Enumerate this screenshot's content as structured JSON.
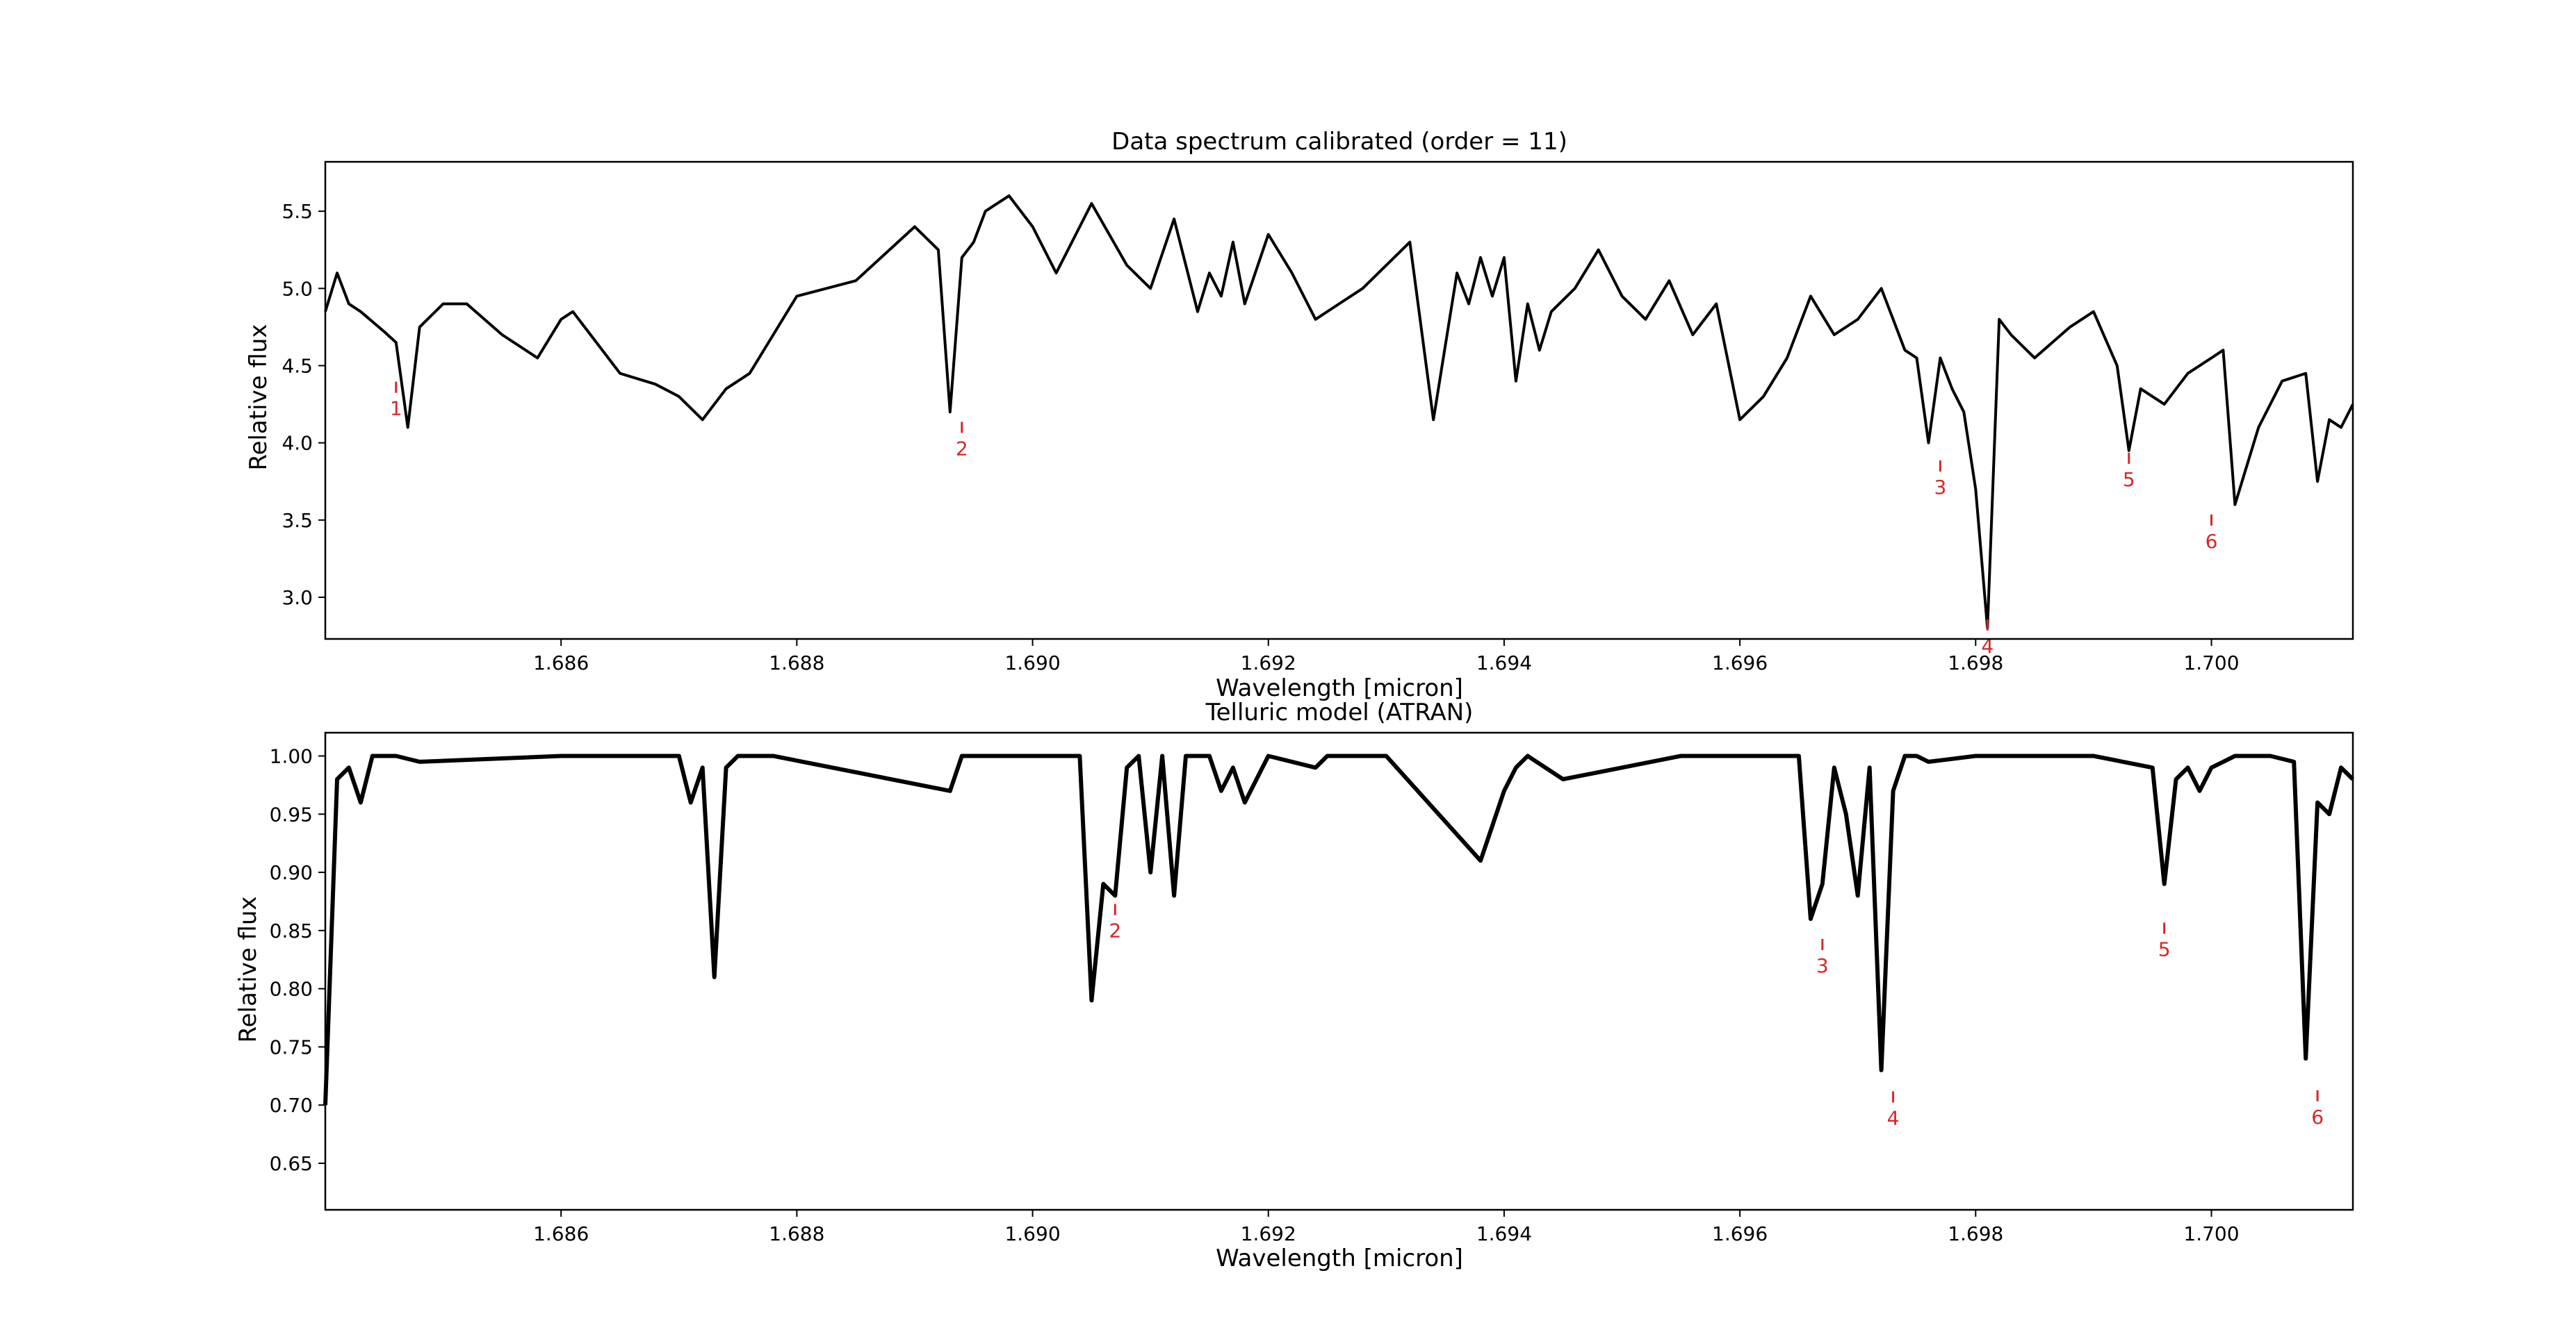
{
  "chart_data": [
    {
      "type": "line",
      "title": "Data spectrum calibrated (order = 11)",
      "xlabel": "Wavelength [micron]",
      "ylabel": "Relative flux",
      "xlim": [
        1.684,
        1.7012
      ],
      "ylim": [
        2.73,
        5.82
      ],
      "xticks": [
        "1.686",
        "1.688",
        "1.690",
        "1.692",
        "1.694",
        "1.696",
        "1.698",
        "1.700"
      ],
      "yticks": [
        "3.0",
        "3.5",
        "4.0",
        "4.5",
        "5.0",
        "5.5"
      ],
      "grid": false,
      "line_color": "#000000",
      "marker_color": "#d62728",
      "series": [
        {
          "x": [
            1.684,
            1.6841,
            1.6842,
            1.6843,
            1.6845,
            1.6846,
            1.6847,
            1.6848,
            1.685,
            1.6852,
            1.6855,
            1.6858,
            1.686,
            1.6861,
            1.6862,
            1.6865,
            1.6868,
            1.687,
            1.6872,
            1.6874,
            1.6875,
            1.6876,
            1.688,
            1.6885,
            1.689,
            1.6892,
            1.6893,
            1.6894,
            1.6895,
            1.6896,
            1.6898,
            1.69,
            1.6902,
            1.6905,
            1.6908,
            1.691,
            1.6912,
            1.6914,
            1.6915,
            1.6916,
            1.6917,
            1.6918,
            1.692,
            1.6922,
            1.6924,
            1.6926,
            1.6928,
            1.693,
            1.6932,
            1.6934,
            1.6936,
            1.6937,
            1.6938,
            1.6939,
            1.694,
            1.6941,
            1.6942,
            1.6943,
            1.6944,
            1.6946,
            1.6948,
            1.695,
            1.6952,
            1.6954,
            1.6956,
            1.6958,
            1.696,
            1.6962,
            1.6964,
            1.6966,
            1.6968,
            1.697,
            1.6972,
            1.6974,
            1.6975,
            1.6976,
            1.6977,
            1.6978,
            1.6979,
            1.698,
            1.6981,
            1.6982,
            1.6983,
            1.6985,
            1.6988,
            1.699,
            1.6992,
            1.6993,
            1.6994,
            1.6996,
            1.6998,
            1.7,
            1.7001,
            1.7002,
            1.7004,
            1.7006,
            1.7008,
            1.7009,
            1.701,
            1.7011,
            1.7012
          ],
          "y": [
            4.85,
            5.1,
            4.9,
            4.85,
            4.72,
            4.65,
            4.1,
            4.75,
            4.9,
            4.9,
            4.7,
            4.55,
            4.8,
            4.85,
            4.75,
            4.45,
            4.38,
            4.3,
            4.15,
            4.35,
            4.4,
            4.45,
            4.95,
            5.05,
            5.4,
            5.25,
            4.2,
            5.2,
            5.3,
            5.5,
            5.6,
            5.4,
            5.1,
            5.55,
            5.15,
            5.0,
            5.45,
            4.85,
            5.1,
            4.95,
            5.3,
            4.9,
            5.35,
            5.1,
            4.8,
            4.9,
            5.0,
            5.15,
            5.3,
            4.15,
            5.1,
            4.9,
            5.2,
            4.95,
            5.2,
            4.4,
            4.9,
            4.6,
            4.85,
            5.0,
            5.25,
            4.95,
            4.8,
            5.05,
            4.7,
            4.9,
            4.15,
            4.3,
            4.55,
            4.95,
            4.7,
            4.8,
            5.0,
            4.6,
            4.55,
            4.0,
            4.55,
            4.35,
            4.2,
            3.7,
            2.8,
            4.8,
            4.7,
            4.55,
            4.75,
            4.85,
            4.5,
            3.95,
            4.35,
            4.25,
            4.45,
            4.55,
            4.6,
            3.6,
            4.1,
            4.4,
            4.45,
            3.75,
            4.15,
            4.1,
            4.25
          ]
        }
      ],
      "markers": [
        {
          "label": "1",
          "x": 1.6846,
          "y": 4.36
        },
        {
          "label": "2",
          "x": 1.6894,
          "y": 4.1
        },
        {
          "label": "3",
          "x": 1.6977,
          "y": 3.85
        },
        {
          "label": "4",
          "x": 1.6981,
          "y": 2.82
        },
        {
          "label": "5",
          "x": 1.6993,
          "y": 3.9
        },
        {
          "label": "6",
          "x": 1.7,
          "y": 3.5
        }
      ]
    },
    {
      "type": "line",
      "title": "Telluric model (ATRAN)",
      "xlabel": "Wavelength [micron]",
      "ylabel": "Relative flux",
      "xlim": [
        1.684,
        1.7012
      ],
      "ylim": [
        0.61,
        1.02
      ],
      "xticks": [
        "1.686",
        "1.688",
        "1.690",
        "1.692",
        "1.694",
        "1.696",
        "1.698",
        "1.700"
      ],
      "yticks": [
        "0.65",
        "0.70",
        "0.75",
        "0.80",
        "0.85",
        "0.90",
        "0.95",
        "1.00"
      ],
      "grid": false,
      "line_color": "#000000",
      "marker_color": "#d62728",
      "series": [
        {
          "x": [
            1.684,
            1.6841,
            1.6842,
            1.6843,
            1.6844,
            1.6845,
            1.6846,
            1.6848,
            1.686,
            1.687,
            1.6871,
            1.6872,
            1.6873,
            1.6874,
            1.6875,
            1.6878,
            1.6893,
            1.6894,
            1.6895,
            1.69,
            1.6904,
            1.6905,
            1.6906,
            1.6907,
            1.6908,
            1.6909,
            1.691,
            1.6911,
            1.6912,
            1.6913,
            1.6915,
            1.6916,
            1.6917,
            1.6918,
            1.692,
            1.6924,
            1.6925,
            1.6926,
            1.693,
            1.6938,
            1.6939,
            1.694,
            1.6941,
            1.6942,
            1.6945,
            1.6955,
            1.6965,
            1.6966,
            1.6967,
            1.6968,
            1.6969,
            1.697,
            1.6971,
            1.6972,
            1.6973,
            1.6974,
            1.6975,
            1.6976,
            1.698,
            1.699,
            1.6995,
            1.6996,
            1.6997,
            1.6998,
            1.6999,
            1.7,
            1.7001,
            1.7002,
            1.7005,
            1.7007,
            1.7008,
            1.7009,
            1.701,
            1.7011,
            1.7012
          ],
          "y": [
            0.7,
            0.98,
            0.99,
            0.96,
            1.0,
            1.0,
            1.0,
            0.995,
            1.0,
            1.0,
            0.96,
            0.99,
            0.81,
            0.99,
            1.0,
            1.0,
            0.97,
            1.0,
            1.0,
            1.0,
            1.0,
            0.79,
            0.89,
            0.88,
            0.99,
            1.0,
            0.9,
            1.0,
            0.88,
            1.0,
            1.0,
            0.97,
            0.99,
            0.96,
            1.0,
            0.99,
            1.0,
            1.0,
            1.0,
            0.91,
            0.94,
            0.97,
            0.99,
            1.0,
            0.98,
            1.0,
            1.0,
            0.86,
            0.89,
            0.99,
            0.95,
            0.88,
            0.99,
            0.73,
            0.97,
            1.0,
            1.0,
            0.995,
            1.0,
            1.0,
            0.99,
            0.89,
            0.98,
            0.99,
            0.97,
            0.99,
            0.995,
            1.0,
            1.0,
            0.995,
            0.74,
            0.96,
            0.95,
            0.99,
            0.98
          ]
        }
      ],
      "markers": [
        {
          "label": "2",
          "x": 1.6907,
          "y": 0.868
        },
        {
          "label": "3",
          "x": 1.6967,
          "y": 0.838
        },
        {
          "label": "4",
          "x": 1.6973,
          "y": 0.707
        },
        {
          "label": "5",
          "x": 1.6996,
          "y": 0.852
        },
        {
          "label": "6",
          "x": 1.7009,
          "y": 0.708
        }
      ]
    }
  ]
}
